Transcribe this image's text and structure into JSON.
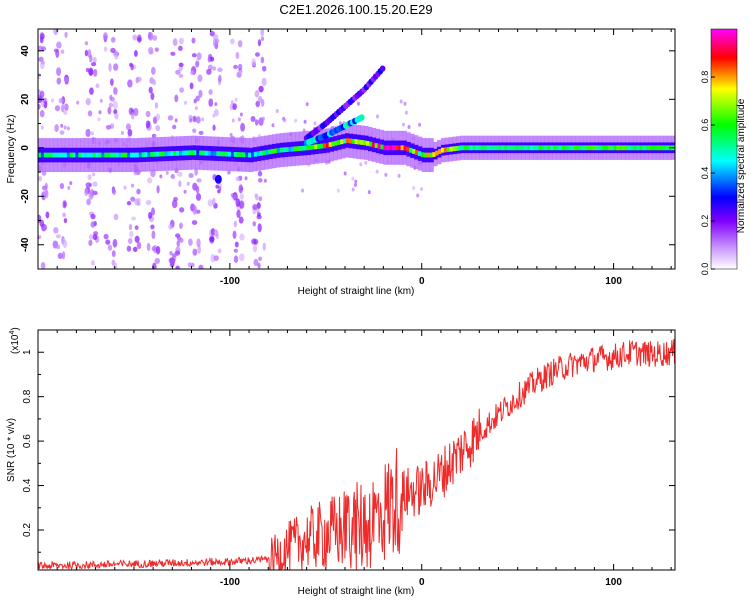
{
  "chart_data": [
    {
      "type": "heatmap",
      "title": "C2E1.2026.100.15.20.E29",
      "xlabel": "Height of straight line (km)",
      "ylabel": "Frequency (Hz)",
      "xlim": [
        -200,
        132
      ],
      "ylim": [
        -50,
        49
      ],
      "xticks": [
        -100,
        0,
        100
      ],
      "yticks": [
        -40,
        -20,
        0,
        20,
        40
      ],
      "grid": false,
      "colorbar": {
        "label": "Normalized spectral amplitude",
        "range": [
          0,
          1
        ],
        "ticks": [
          "0.0",
          "0.2",
          "0.4",
          "0.6",
          "0.8"
        ],
        "colormap": [
          "#ffffff",
          "#a020f0",
          "#0000ff",
          "#00ffff",
          "#00ff00",
          "#ffff00",
          "#ff0000",
          "#ff00ff"
        ]
      },
      "main_trace": {
        "description": "dominant spectral line",
        "x": [
          -200,
          -150,
          -120,
          -90,
          -75,
          -60,
          -50,
          -40,
          -30,
          -20,
          -10,
          0,
          5,
          10,
          20,
          50,
          100,
          132
        ],
        "freq_hz": [
          -3,
          -3,
          -2,
          -3,
          -1,
          0,
          1,
          3,
          2,
          0,
          0,
          -3,
          -3,
          -1,
          0,
          0,
          0,
          0
        ],
        "amplitude": [
          0.45,
          0.5,
          0.45,
          0.45,
          0.5,
          0.6,
          0.7,
          0.65,
          0.7,
          0.85,
          0.8,
          0.6,
          0.75,
          0.8,
          0.55,
          0.55,
          0.6,
          0.55
        ]
      },
      "branch_traces": [
        {
          "x": [
            -60,
            -50,
            -40,
            -30,
            -20
          ],
          "freq_hz": [
            4,
            10,
            17,
            24,
            33
          ],
          "amplitude": 0.25
        },
        {
          "x": [
            -60,
            -50,
            -40,
            -30
          ],
          "freq_hz": [
            2,
            5,
            9,
            13
          ],
          "amplitude": 0.45
        }
      ]
    },
    {
      "type": "line",
      "xlabel": "Height of straight line (km)",
      "ylabel": "SNR (10 * v/v)",
      "y_scale_label": "(x10",
      "y_scale_exponent": "4",
      "xlim": [
        -200,
        132
      ],
      "ylim": [
        0.02,
        1.1
      ],
      "xticks": [
        -100,
        0,
        100
      ],
      "yticks": [
        0.2,
        0.4,
        0.6,
        0.8,
        1
      ],
      "grid": false,
      "series": [
        {
          "name": "SNR",
          "color": "#ee2a2a",
          "x": [
            -200,
            -150,
            -100,
            -80,
            -70,
            -60,
            -50,
            -40,
            -30,
            -20,
            -15,
            -10,
            0,
            10,
            20,
            30,
            40,
            50,
            60,
            70,
            80,
            90,
            100,
            110,
            120,
            132
          ],
          "y": [
            0.03,
            0.04,
            0.05,
            0.06,
            0.12,
            0.16,
            0.18,
            0.2,
            0.22,
            0.28,
            0.32,
            0.36,
            0.38,
            0.45,
            0.55,
            0.64,
            0.72,
            0.8,
            0.87,
            0.92,
            0.95,
            0.97,
            0.98,
            1.0,
            0.99,
            1.0
          ]
        }
      ]
    }
  ]
}
